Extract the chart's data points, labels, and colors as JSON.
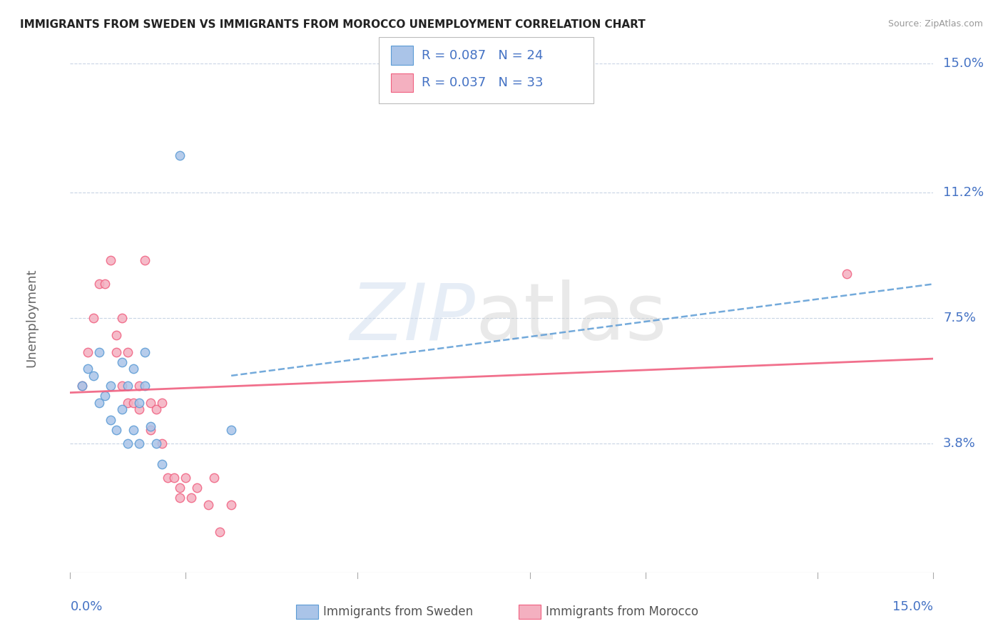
{
  "title": "IMMIGRANTS FROM SWEDEN VS IMMIGRANTS FROM MOROCCO UNEMPLOYMENT CORRELATION CHART",
  "source": "Source: ZipAtlas.com",
  "ylabel": "Unemployment",
  "xlim": [
    0.0,
    0.15
  ],
  "ylim": [
    0.0,
    0.15
  ],
  "ytick_values": [
    0.038,
    0.075,
    0.112,
    0.15
  ],
  "ytick_labels": [
    "3.8%",
    "7.5%",
    "11.2%",
    "15.0%"
  ],
  "color_sweden": "#aac4e8",
  "color_morocco": "#f4b0c0",
  "color_sweden_line": "#5b9bd5",
  "color_morocco_line": "#f06080",
  "color_blue_text": "#4472c4",
  "color_grid": "#c8d4e4",
  "background_color": "#ffffff",
  "legend_r1": "R = 0.087",
  "legend_n1": "N = 24",
  "legend_r2": "R = 0.037",
  "legend_n2": "N = 33",
  "sweden_x": [
    0.002,
    0.003,
    0.004,
    0.005,
    0.005,
    0.006,
    0.007,
    0.007,
    0.008,
    0.009,
    0.009,
    0.01,
    0.01,
    0.011,
    0.011,
    0.012,
    0.012,
    0.013,
    0.013,
    0.014,
    0.015,
    0.016,
    0.019,
    0.028
  ],
  "sweden_y": [
    0.055,
    0.06,
    0.058,
    0.05,
    0.065,
    0.052,
    0.055,
    0.045,
    0.042,
    0.048,
    0.062,
    0.038,
    0.055,
    0.042,
    0.06,
    0.038,
    0.05,
    0.055,
    0.065,
    0.043,
    0.038,
    0.032,
    0.123,
    0.042
  ],
  "morocco_x": [
    0.002,
    0.003,
    0.004,
    0.005,
    0.006,
    0.007,
    0.008,
    0.008,
    0.009,
    0.009,
    0.01,
    0.01,
    0.011,
    0.012,
    0.012,
    0.013,
    0.014,
    0.014,
    0.015,
    0.016,
    0.016,
    0.017,
    0.018,
    0.019,
    0.019,
    0.02,
    0.021,
    0.022,
    0.024,
    0.025,
    0.026,
    0.028,
    0.135
  ],
  "morocco_y": [
    0.055,
    0.065,
    0.075,
    0.085,
    0.085,
    0.092,
    0.065,
    0.07,
    0.055,
    0.075,
    0.05,
    0.065,
    0.05,
    0.048,
    0.055,
    0.092,
    0.042,
    0.05,
    0.048,
    0.038,
    0.05,
    0.028,
    0.028,
    0.025,
    0.022,
    0.028,
    0.022,
    0.025,
    0.02,
    0.028,
    0.012,
    0.02,
    0.088
  ],
  "sweden_trend_x": [
    0.028,
    0.15
  ],
  "sweden_trend_y": [
    0.058,
    0.085
  ],
  "morocco_trend_x": [
    0.0,
    0.15
  ],
  "morocco_trend_y": [
    0.053,
    0.063
  ],
  "title_fontsize": 11,
  "label_fontsize": 13,
  "marker_size": 80
}
